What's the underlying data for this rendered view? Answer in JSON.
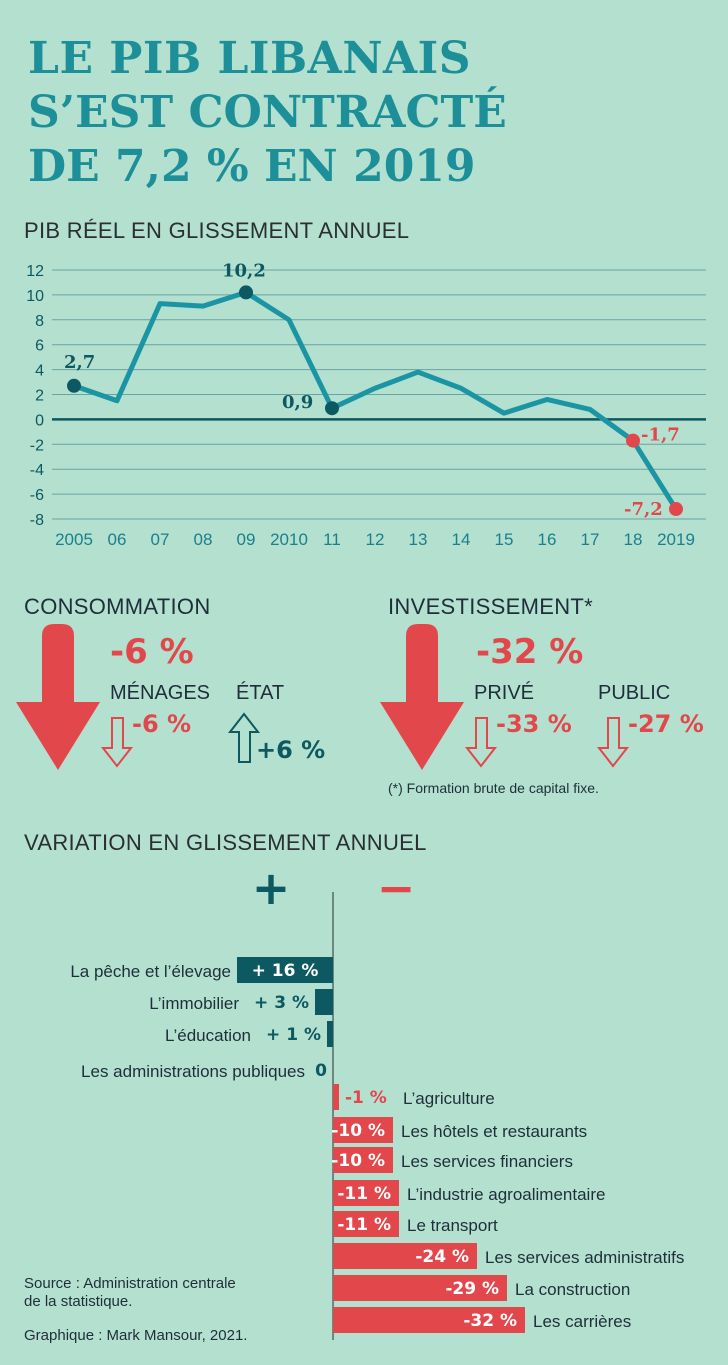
{
  "title": {
    "line1": "LE PIB LIBANAIS",
    "line2": "S’EST CONTRACTÉ",
    "line3": "DE 7,2 % EN 2019"
  },
  "colors": {
    "background": "#b3e0cf",
    "accent": "#1d8f99",
    "positive": "#0d5961",
    "negative": "#e2474b",
    "line": "#1b95a4"
  },
  "chart_data": [
    {
      "type": "line",
      "title": "PIB RÉEL EN GLISSEMENT ANNUEL",
      "x": [
        "2005",
        "06",
        "07",
        "08",
        "09",
        "2010",
        "11",
        "12",
        "13",
        "14",
        "15",
        "16",
        "17",
        "18",
        "2019"
      ],
      "values": [
        2.7,
        1.5,
        9.3,
        9.1,
        10.2,
        8.0,
        0.9,
        2.5,
        3.8,
        2.5,
        0.5,
        1.6,
        0.8,
        -1.7,
        -7.2
      ],
      "ylim": [
        -8,
        12
      ],
      "yticks": [
        "12",
        "10",
        "8",
        "6",
        "4",
        "2",
        "0",
        "-2",
        "-4",
        "-6",
        "-8"
      ],
      "grid": true,
      "annotations": [
        {
          "label": "2,7",
          "index": 0,
          "color": "dark"
        },
        {
          "label": "10,2",
          "index": 4,
          "color": "dark"
        },
        {
          "label": "0,9",
          "index": 6,
          "color": "dark"
        },
        {
          "label": "-1,7",
          "index": 13,
          "color": "red"
        },
        {
          "label": "-7,2",
          "index": 14,
          "color": "red"
        }
      ]
    },
    {
      "type": "bar",
      "title": "VARIATION EN GLISSEMENT ANNUEL",
      "legend": {
        "plus": "+",
        "minus": "−"
      },
      "categories": [
        "La pêche et l’élevage",
        "L’immobilier",
        "L’éducation",
        "Les administrations publiques",
        "L’agriculture",
        "Les hôtels et restaurants",
        "Les services financiers",
        "L’industrie agroalimentaire",
        "Le transport",
        "Les services administratifs",
        "La construction",
        "Les carrières"
      ],
      "values": [
        16,
        3,
        1,
        0,
        -1,
        -10,
        -10,
        -11,
        -11,
        -24,
        -29,
        -32
      ],
      "labels": [
        "+ 16 %",
        "+ 3 %",
        "+ 1 %",
        "0",
        "-1 %",
        "-10 %",
        "-10 %",
        "-11 %",
        "-11 %",
        "-24 %",
        "-29 %",
        "-32 %"
      ]
    }
  ],
  "consommation": {
    "title": "CONSOMMATION",
    "total": "-6 %",
    "menages_label": "MÉNAGES",
    "menages_value": "-6 %",
    "etat_label": "ÉTAT",
    "etat_value": "+6 %"
  },
  "investissement": {
    "title": "INVESTISSEMENT*",
    "total": "-32 %",
    "prive_label": "PRIVÉ",
    "prive_value": "-33 %",
    "public_label": "PUBLIC",
    "public_value": "-27 %",
    "footnote": "(*) Formation brute de capital fixe."
  },
  "source": {
    "line1": "Source : Administration centrale",
    "line2": "de la statistique.",
    "credit": "Graphique : Mark Mansour, 2021."
  }
}
